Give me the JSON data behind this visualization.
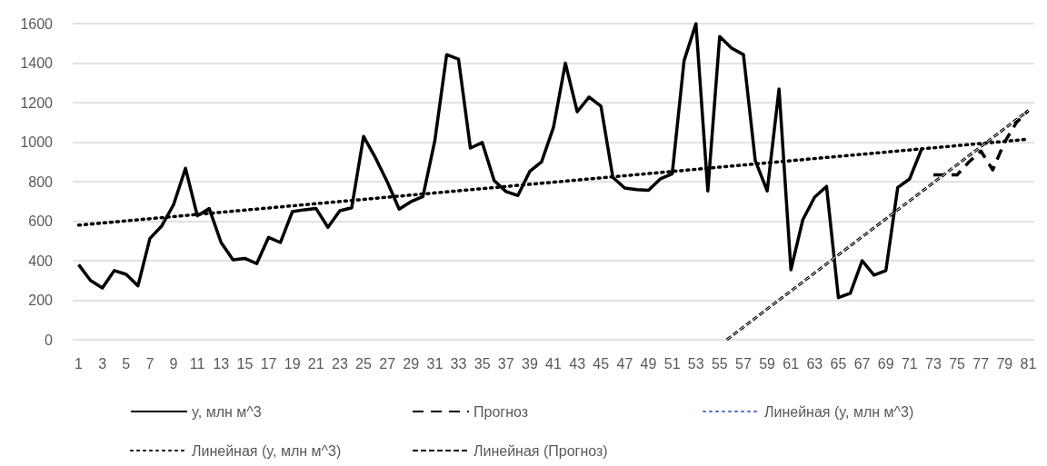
{
  "chart_data": {
    "type": "line",
    "xlim": [
      0.5,
      81.5
    ],
    "xticks": [
      1,
      3,
      5,
      7,
      9,
      11,
      13,
      15,
      17,
      19,
      21,
      23,
      25,
      27,
      29,
      31,
      33,
      35,
      37,
      39,
      41,
      43,
      45,
      47,
      49,
      51,
      53,
      55,
      57,
      59,
      61,
      63,
      65,
      67,
      69,
      71,
      73,
      75,
      77,
      79,
      81
    ],
    "ylim": [
      0,
      1600
    ],
    "yticks": [
      0,
      200,
      400,
      600,
      800,
      1000,
      1200,
      1400,
      1600
    ],
    "grid": "y",
    "legend": "bottom",
    "marker": "none",
    "series": [
      {
        "name": "y, млн м^3",
        "color": "#000000",
        "line_style": "solid",
        "x": [
          1,
          2,
          3,
          4,
          5,
          6,
          7,
          8,
          9,
          10,
          11,
          12,
          13,
          14,
          15,
          16,
          17,
          18,
          19,
          20,
          21,
          22,
          23,
          24,
          25,
          26,
          27,
          28,
          29,
          30,
          31,
          32,
          33,
          34,
          35,
          36,
          37,
          38,
          39,
          40,
          41,
          42,
          43,
          44,
          45,
          46,
          47,
          48,
          49,
          50,
          51,
          52,
          53,
          54,
          55,
          56,
          57,
          58,
          59,
          60,
          61,
          62,
          63,
          64,
          65,
          66,
          67,
          68,
          69,
          70,
          71,
          72
        ],
        "values": [
          380,
          300,
          262,
          350,
          331,
          273,
          512,
          576,
          684,
          868,
          627,
          664,
          492,
          405,
          412,
          385,
          518,
          492,
          648,
          658,
          664,
          569,
          653,
          668,
          1029,
          921,
          799,
          661,
          699,
          725,
          1006,
          1443,
          1420,
          970,
          998,
          806,
          750,
          730,
          852,
          901,
          1075,
          1400,
          1154,
          1228,
          1182,
          822,
          768,
          760,
          756,
          814,
          840,
          1412,
          1600,
          753,
          1535,
          1476,
          1443,
          906,
          753,
          1269,
          354,
          607,
          722,
          776,
          213,
          235,
          400,
          327,
          350,
          771,
          814,
          964
        ]
      },
      {
        "name": "Прогноз",
        "color": "#000000",
        "line_style": "dashed",
        "x": [
          73,
          74,
          75,
          76,
          77,
          78,
          79,
          80,
          81
        ],
        "values": [
          834,
          834,
          834,
          900,
          955,
          860,
          1000,
          1100,
          1160
        ]
      },
      {
        "name": "Линейная (y, млн м^3)",
        "color": "#4472c4",
        "line_style": "dotted"
      },
      {
        "name": "Линейная (y, млн м^3)",
        "color": "#000000",
        "line_style": "dotted",
        "x": [
          1,
          81
        ],
        "values": [
          580,
          1015
        ]
      },
      {
        "name": "Линейная (Прогноз)",
        "color": "#000000",
        "line_style": "double",
        "x": [
          55.6,
          81
        ],
        "values": [
          0,
          1160
        ]
      }
    ]
  }
}
